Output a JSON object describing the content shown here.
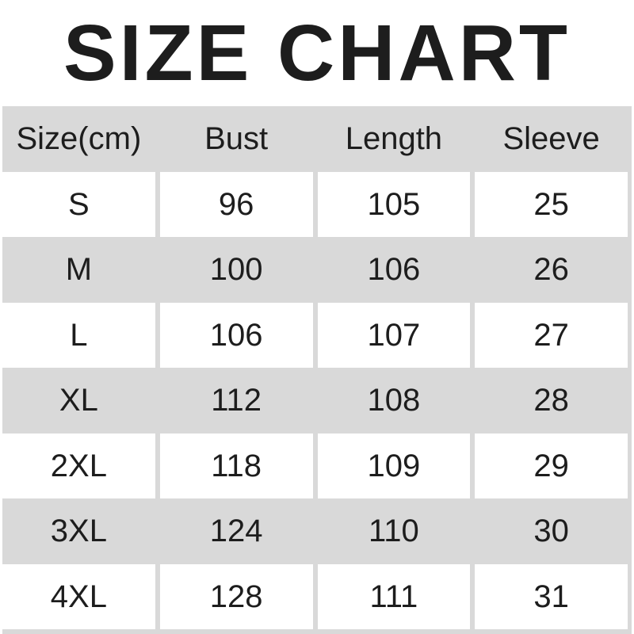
{
  "title": "SIZE CHART",
  "colors": {
    "stripe": "#d9d9d9",
    "row_white": "#ffffff",
    "text": "#1d1d1d"
  },
  "table": {
    "headers": [
      "Size(cm)",
      "Bust",
      "Length",
      "Sleeve"
    ],
    "rows": [
      {
        "size": "S",
        "bust": "96",
        "length": "105",
        "sleeve": "25"
      },
      {
        "size": "M",
        "bust": "100",
        "length": "106",
        "sleeve": "26"
      },
      {
        "size": "L",
        "bust": "106",
        "length": "107",
        "sleeve": "27"
      },
      {
        "size": "XL",
        "bust": "112",
        "length": "108",
        "sleeve": "28"
      },
      {
        "size": "2XL",
        "bust": "118",
        "length": "109",
        "sleeve": "29"
      },
      {
        "size": "3XL",
        "bust": "124",
        "length": "110",
        "sleeve": "30"
      },
      {
        "size": "4XL",
        "bust": "128",
        "length": "111",
        "sleeve": "31"
      }
    ]
  },
  "chart_data": {
    "type": "table",
    "title": "SIZE CHART",
    "unit": "cm",
    "columns": [
      "Size(cm)",
      "Bust",
      "Length",
      "Sleeve"
    ],
    "rows": [
      [
        "S",
        96,
        105,
        25
      ],
      [
        "M",
        100,
        106,
        26
      ],
      [
        "L",
        106,
        107,
        27
      ],
      [
        "XL",
        112,
        108,
        28
      ],
      [
        "2XL",
        118,
        109,
        29
      ],
      [
        "3XL",
        124,
        110,
        30
      ],
      [
        "4XL",
        128,
        111,
        31
      ]
    ]
  }
}
